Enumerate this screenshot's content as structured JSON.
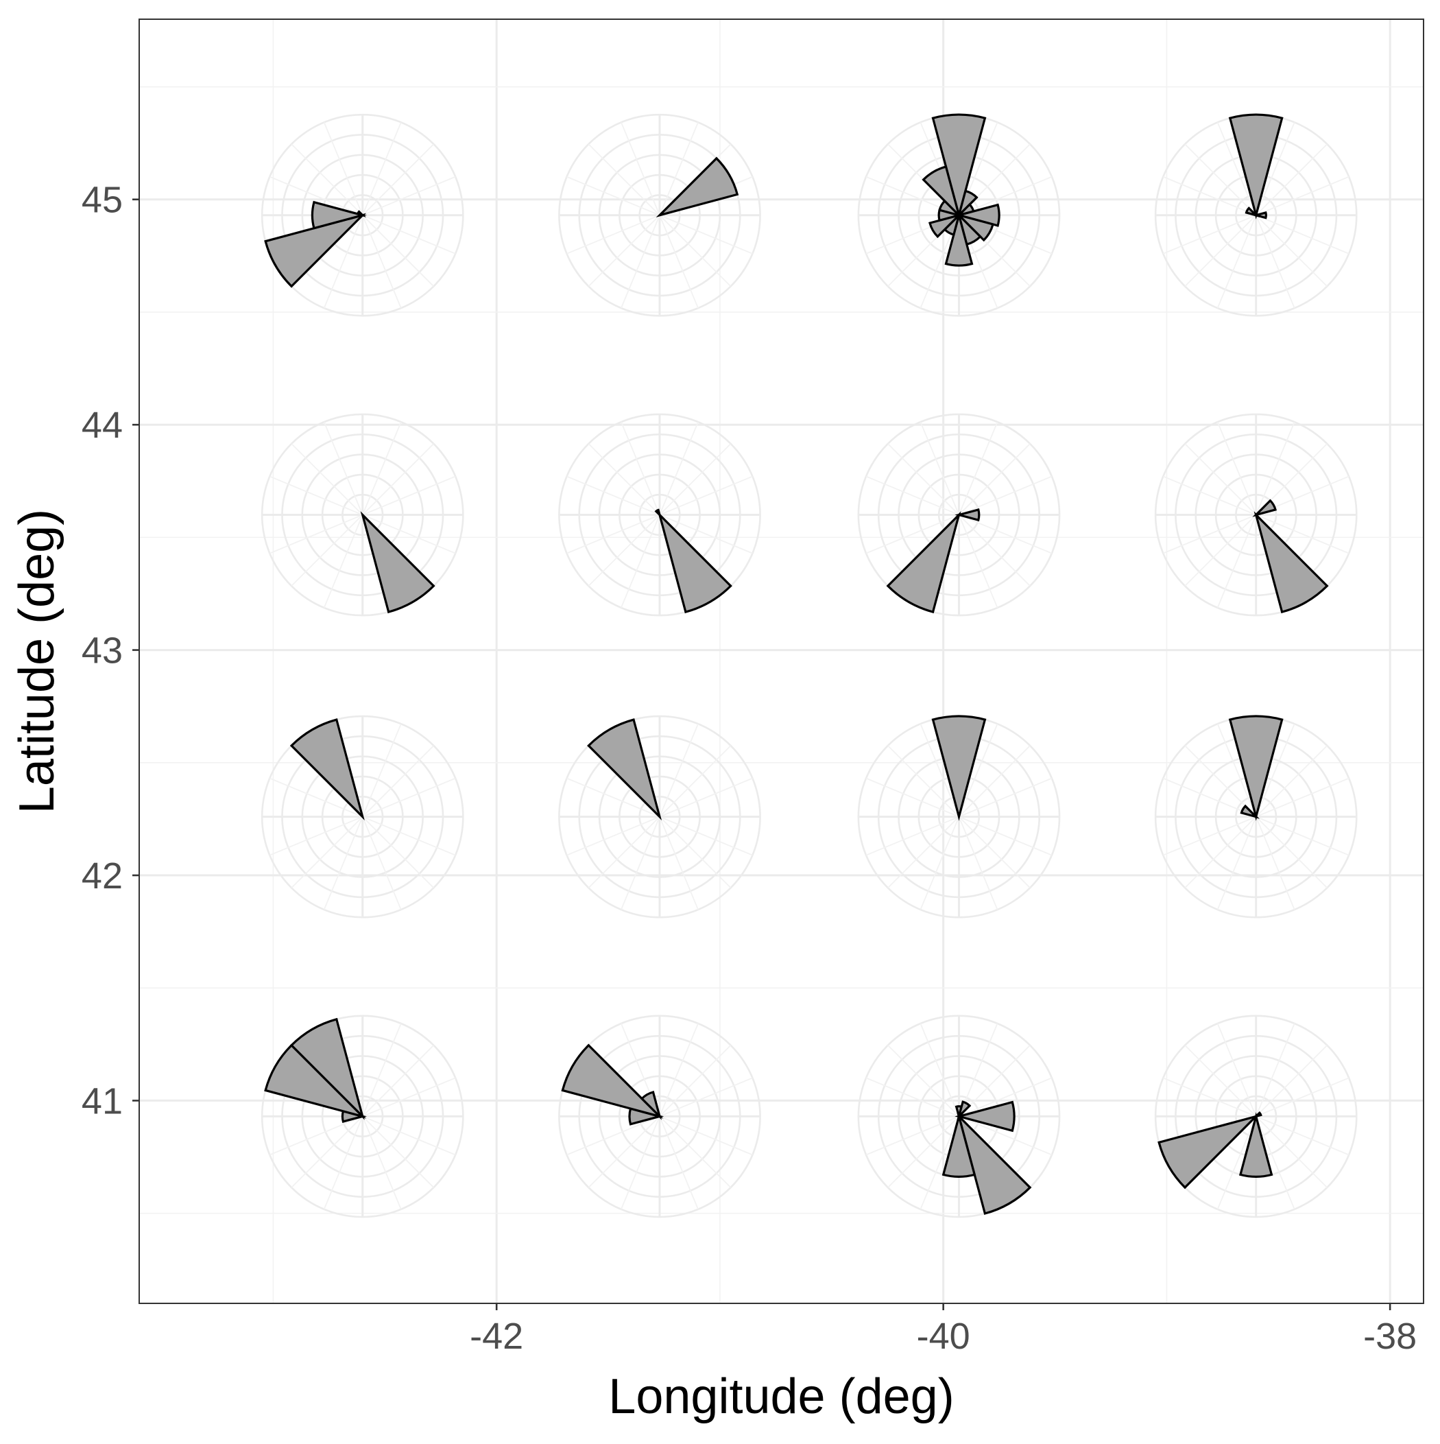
{
  "colors": {
    "background": "#ffffff",
    "panel_border": "#333333",
    "grid_major": "#ebebeb",
    "grid_minor": "#f2f2f2",
    "wedge_fill": "#a6a6a6",
    "wedge_stroke": "#000000",
    "tick_text": "#4d4d4d"
  },
  "chart_data": {
    "type": "map-with-polar-inset-charts",
    "title": "",
    "xlabel": "Longitude (deg)",
    "ylabel": "Latitude (deg)",
    "xlim": [
      -43.6,
      -37.85
    ],
    "ylim": [
      40.1,
      45.8
    ],
    "x_ticks": [
      -42,
      -40,
      -38
    ],
    "x_tick_labels": [
      "-42",
      "-40",
      "-38"
    ],
    "y_ticks": [
      41,
      42,
      43,
      44,
      45
    ],
    "y_tick_labels": [
      "41",
      "42",
      "43",
      "44",
      "45"
    ],
    "grid": true,
    "inset_radius_deg": 0.45,
    "inset_rings": 5,
    "inset_spokes": 16,
    "wedge_width_deg": 30,
    "roses": [
      {
        "lon": -42.6,
        "lat": 44.93,
        "wedges": [
          {
            "dir": 240,
            "r": 1.0
          },
          {
            "dir": 270,
            "r": 0.5
          },
          {
            "dir": 300,
            "r": 0.05
          }
        ]
      },
      {
        "lon": -41.27,
        "lat": 44.93,
        "wedges": [
          {
            "dir": 60,
            "r": 0.8
          }
        ]
      },
      {
        "lon": -39.93,
        "lat": 44.93,
        "wedges": [
          {
            "dir": 0,
            "r": 1.0
          },
          {
            "dir": 30,
            "r": 0.25
          },
          {
            "dir": 60,
            "r": 0.15
          },
          {
            "dir": 90,
            "r": 0.4
          },
          {
            "dir": 120,
            "r": 0.35
          },
          {
            "dir": 150,
            "r": 0.3
          },
          {
            "dir": 180,
            "r": 0.5
          },
          {
            "dir": 210,
            "r": 0.2
          },
          {
            "dir": 240,
            "r": 0.3
          },
          {
            "dir": 270,
            "r": 0.2
          },
          {
            "dir": 300,
            "r": 0.2
          },
          {
            "dir": 330,
            "r": 0.5
          }
        ]
      },
      {
        "lon": -38.6,
        "lat": 44.93,
        "wedges": [
          {
            "dir": 0,
            "r": 1.0
          },
          {
            "dir": 90,
            "r": 0.1
          },
          {
            "dir": 300,
            "r": 0.1
          }
        ]
      },
      {
        "lon": -42.6,
        "lat": 43.6,
        "wedges": [
          {
            "dir": 150,
            "r": 1.0
          }
        ]
      },
      {
        "lon": -41.27,
        "lat": 43.6,
        "wedges": [
          {
            "dir": 150,
            "r": 1.0
          },
          {
            "dir": 330,
            "r": 0.05
          }
        ]
      },
      {
        "lon": -39.93,
        "lat": 43.6,
        "wedges": [
          {
            "dir": 90,
            "r": 0.2
          },
          {
            "dir": 210,
            "r": 1.0
          }
        ]
      },
      {
        "lon": -38.6,
        "lat": 43.6,
        "wedges": [
          {
            "dir": 60,
            "r": 0.2
          },
          {
            "dir": 150,
            "r": 1.0
          }
        ]
      },
      {
        "lon": -42.6,
        "lat": 42.26,
        "wedges": [
          {
            "dir": 330,
            "r": 1.0
          }
        ]
      },
      {
        "lon": -41.27,
        "lat": 42.26,
        "wedges": [
          {
            "dir": 330,
            "r": 1.0
          }
        ]
      },
      {
        "lon": -39.93,
        "lat": 42.26,
        "wedges": [
          {
            "dir": 0,
            "r": 1.0
          }
        ]
      },
      {
        "lon": -38.6,
        "lat": 42.26,
        "wedges": [
          {
            "dir": 0,
            "r": 1.0
          },
          {
            "dir": 300,
            "r": 0.15
          }
        ]
      },
      {
        "lon": -42.6,
        "lat": 40.93,
        "wedges": [
          {
            "dir": 270,
            "r": 0.2
          },
          {
            "dir": 300,
            "r": 1.0
          },
          {
            "dir": 330,
            "r": 1.0
          }
        ]
      },
      {
        "lon": -41.27,
        "lat": 40.93,
        "wedges": [
          {
            "dir": 270,
            "r": 0.3
          },
          {
            "dir": 300,
            "r": 1.0
          },
          {
            "dir": 330,
            "r": 0.25
          }
        ]
      },
      {
        "lon": -39.93,
        "lat": 40.93,
        "wedges": [
          {
            "dir": 0,
            "r": 0.1
          },
          {
            "dir": 30,
            "r": 0.15
          },
          {
            "dir": 90,
            "r": 0.55
          },
          {
            "dir": 150,
            "r": 1.0
          },
          {
            "dir": 180,
            "r": 0.6
          }
        ]
      },
      {
        "lon": -38.6,
        "lat": 40.93,
        "wedges": [
          {
            "dir": 60,
            "r": 0.05
          },
          {
            "dir": 180,
            "r": 0.6
          },
          {
            "dir": 240,
            "r": 1.0
          }
        ]
      }
    ]
  }
}
